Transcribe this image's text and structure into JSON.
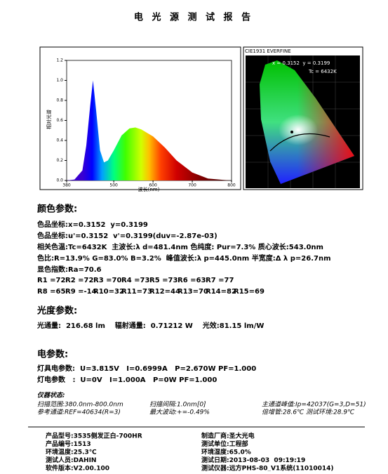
{
  "header": {
    "title": "电 光 源 测 试 报 告"
  },
  "spectrum": {
    "type": "area",
    "y_label": "相对光谱",
    "x_label": "波长(nm)",
    "x": [
      380,
      400,
      420,
      430,
      440,
      447,
      455,
      465,
      475,
      485,
      500,
      520,
      540,
      555,
      570,
      600,
      630,
      660,
      700,
      740,
      780,
      800
    ],
    "values": [
      0,
      0.01,
      0.1,
      0.35,
      0.75,
      1.0,
      0.7,
      0.3,
      0.18,
      0.2,
      0.3,
      0.45,
      0.52,
      0.53,
      0.51,
      0.44,
      0.33,
      0.2,
      0.08,
      0.02,
      0.005,
      0
    ],
    "xlim": [
      380,
      800
    ],
    "ylim": [
      0,
      1.2
    ],
    "xticks": [
      380,
      500,
      600,
      700,
      800
    ],
    "yticks": [
      {
        "value": 0,
        "label": "0.0"
      },
      {
        "value": 0.2,
        "label": "0.2"
      },
      {
        "value": 0.4,
        "label": "0.4"
      },
      {
        "value": 0.6,
        "label": "0.6"
      },
      {
        "value": 0.8,
        "label": "0.8"
      },
      {
        "value": 1.0,
        "label": "1.0"
      },
      {
        "value": 1.2,
        "label": "1.2"
      }
    ]
  },
  "cie": {
    "title": "CIE1931 EVERFINE",
    "coords": "x = 0.3152  y = 0.3199",
    "tc": "Tc = 6432K"
  },
  "color": {
    "heading": "颜色参数:",
    "lines": [
      "色品坐标:x=0.3152  y=0.3199",
      "色品坐标:u'=0.3152  v'=0.3199(duv=-2.87e-03)",
      "相关色温:Tc=6432K  主波长:λ d=481.4nm 色纯度: Pur=7.3% 质心波长:543.0nm",
      "色比:R=13.9% G=83.0% B=3.2%  峰值波长:λ p=445.0nm 半宽度:Δ λ p=26.7nm",
      "显色指数:Ra=70.6"
    ],
    "r_rows": [
      [
        "R1 =72",
        "R2 =72",
        "R3 =70",
        "R4 =73",
        "R5 =73",
        "R6 =63",
        "R7 =77"
      ],
      [
        "R8 =65",
        "R9 =-14",
        "R10=32",
        "R11=73",
        "R12=44",
        "R13=70",
        "R14=82",
        "R15=69"
      ]
    ]
  },
  "photo": {
    "heading": "光度参数:",
    "line": "光通量:  216.68 lm    辐射通量:  0.71212 W    光效:81.15 lm/W"
  },
  "elec": {
    "heading": "电参数:",
    "lines": [
      "灯具电参数:  U=3.815V   I=0.6999A   P=2.670W PF=1.000",
      "灯电参数   :  U=0V   I=1.000A   P=0W PF=1.000"
    ]
  },
  "instrument": {
    "heading": "仪器状态:",
    "rows": [
      [
        "扫描范围:380.0nm-800.0nm",
        "扫描间隔:1.0nm[0]",
        "主通道峰值:Ip=42037(G=3,D=51)"
      ],
      [
        "参考通道:REF=40634(R=3)",
        "最大波动:+=-0.49%",
        "倍增管:28.6℃ 测试环境:28.9℃"
      ]
    ]
  },
  "footer": {
    "rows": [
      [
        "产品型号:3535侧发正白-700HR",
        "制造厂商:圣大光电"
      ],
      [
        "产品编号:1513",
        "测试单位:工程部"
      ],
      [
        "环境温度:25.3℃",
        "环境湿度:65.0%"
      ],
      [
        "测试人员:DAHIN",
        "测试日期:2013-08-03  09:19:19"
      ],
      [
        "软件版本:V2.00.100",
        "测试仪器:远方PHS-80_V1系统(11010014)"
      ]
    ]
  }
}
